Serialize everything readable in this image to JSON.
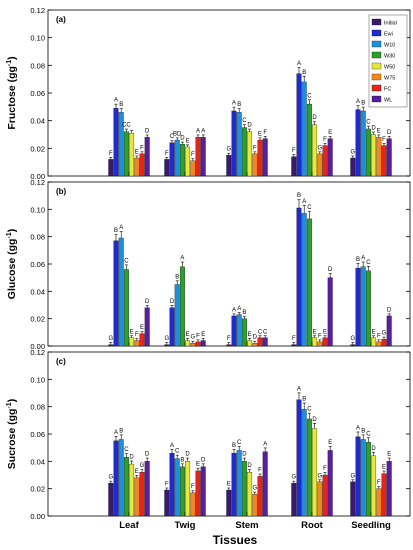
{
  "figure": {
    "xlabel": "Tissues"
  },
  "series_colors": [
    "#3a1a6e",
    "#1f2bd0",
    "#1e8fe0",
    "#2ca02c",
    "#e8e83a",
    "#f28a1b",
    "#e8231c",
    "#5a1ea0"
  ],
  "legend": [
    "Initial",
    "Ewi",
    "W10",
    "W30",
    "W50",
    "W75",
    "FC",
    "WL"
  ],
  "chart_data": [
    {
      "type": "bar",
      "panel": "(a)",
      "ylabel": "Fructose (gg-1)",
      "ylim": [
        0,
        0.12
      ],
      "yticks": [
        "0.00",
        "0.02",
        "0.04",
        "0.06",
        "0.08",
        "0.10",
        "0.12"
      ],
      "categories": [
        "Leaf",
        "Twig",
        "Stem",
        "Root",
        "Seedling"
      ],
      "series": [
        {
          "name": "Initial",
          "values": [
            0.012,
            0.012,
            0.015,
            0.014,
            0.013
          ]
        },
        {
          "name": "Ewi",
          "values": [
            0.049,
            0.024,
            0.047,
            0.074,
            0.048
          ]
        },
        {
          "name": "W10",
          "values": [
            0.046,
            0.026,
            0.046,
            0.068,
            0.047
          ]
        },
        {
          "name": "W30",
          "values": [
            0.032,
            0.023,
            0.035,
            0.052,
            0.034
          ]
        },
        {
          "name": "W50",
          "values": [
            0.031,
            0.021,
            0.032,
            0.037,
            0.03
          ]
        },
        {
          "name": "W75",
          "values": [
            0.013,
            0.011,
            0.016,
            0.016,
            0.028
          ]
        },
        {
          "name": "FC",
          "values": [
            0.016,
            0.028,
            0.026,
            0.022,
            0.022
          ]
        },
        {
          "name": "WL",
          "values": [
            0.028,
            0.028,
            0.027,
            0.027,
            0.027
          ]
        }
      ],
      "letters": [
        [
          "F",
          "A",
          "B",
          "CC",
          "",
          "E",
          "F",
          "D"
        ],
        [
          "F",
          "C",
          "BD",
          "D",
          "E",
          "F",
          "A",
          "A"
        ],
        [
          "G",
          "A",
          "B",
          "C",
          "D",
          "F",
          "E",
          "F"
        ],
        [
          "F",
          "A",
          "B",
          "C",
          "D",
          "G",
          "F",
          "E"
        ],
        [
          "G",
          "A",
          "B",
          "C",
          "D",
          "E",
          "F",
          "D"
        ]
      ]
    },
    {
      "type": "bar",
      "panel": "(b)",
      "ylabel": "Glucose (gg-1)",
      "ylim": [
        0,
        0.12
      ],
      "yticks": [
        "0.00",
        "0.02",
        "0.04",
        "0.06",
        "0.08",
        "0.10",
        "0.12"
      ],
      "categories": [
        "Leaf",
        "Twig",
        "Stem",
        "Root",
        "Seedling"
      ],
      "series": [
        {
          "name": "Initial",
          "values": [
            0.001,
            0.001,
            0.001,
            0.001,
            0.001
          ]
        },
        {
          "name": "Ewi",
          "values": [
            0.077,
            0.028,
            0.022,
            0.101,
            0.057
          ]
        },
        {
          "name": "W10",
          "values": [
            0.079,
            0.045,
            0.023,
            0.097,
            0.058
          ]
        },
        {
          "name": "W30",
          "values": [
            0.056,
            0.058,
            0.02,
            0.093,
            0.055
          ]
        },
        {
          "name": "W50",
          "values": [
            0.006,
            0.004,
            0.004,
            0.006,
            0.006
          ]
        },
        {
          "name": "W75",
          "values": [
            0.004,
            0.002,
            0.002,
            0.003,
            0.003
          ]
        },
        {
          "name": "FC",
          "values": [
            0.009,
            0.003,
            0.006,
            0.006,
            0.005
          ]
        },
        {
          "name": "WL",
          "values": [
            0.028,
            0.004,
            0.006,
            0.05,
            0.022
          ]
        }
      ],
      "letters": [
        [
          "G",
          "B",
          "A",
          "C",
          "E",
          "F",
          "E",
          "D"
        ],
        [
          "G",
          "D",
          "B",
          "A",
          "E",
          "G",
          "F",
          "E"
        ],
        [
          "F",
          "A",
          "A",
          "B",
          "E",
          "D",
          "C",
          "C"
        ],
        [
          "F",
          "B",
          "A",
          "C",
          "E",
          "F",
          "E",
          "D"
        ],
        [
          "G",
          "B",
          "A",
          "C",
          "E",
          "F",
          "G",
          "D"
        ]
      ]
    },
    {
      "type": "bar",
      "panel": "(c)",
      "ylabel": "Sucrose (gg-1)",
      "ylim": [
        0,
        0.12
      ],
      "yticks": [
        "0.00",
        "0.02",
        "0.04",
        "0.06",
        "0.08",
        "0.10",
        "0.12"
      ],
      "categories": [
        "Leaf",
        "Twig",
        "Stem",
        "Root",
        "Seedling"
      ],
      "series": [
        {
          "name": "Initial",
          "values": [
            0.024,
            0.019,
            0.019,
            0.024,
            0.025
          ]
        },
        {
          "name": "Ewi",
          "values": [
            0.055,
            0.046,
            0.046,
            0.085,
            0.058
          ]
        },
        {
          "name": "W10",
          "values": [
            0.056,
            0.042,
            0.048,
            0.078,
            0.056
          ]
        },
        {
          "name": "W30",
          "values": [
            0.043,
            0.036,
            0.04,
            0.071,
            0.054
          ]
        },
        {
          "name": "W50",
          "values": [
            0.038,
            0.04,
            0.032,
            0.064,
            0.044
          ]
        },
        {
          "name": "W75",
          "values": [
            0.028,
            0.017,
            0.016,
            0.025,
            0.02
          ]
        },
        {
          "name": "FC",
          "values": [
            0.032,
            0.033,
            0.029,
            0.03,
            0.031
          ]
        },
        {
          "name": "WL",
          "values": [
            0.04,
            0.036,
            0.047,
            0.048,
            0.04
          ]
        }
      ],
      "letters": [
        [
          "G",
          "A",
          "B",
          "C",
          "D",
          "E",
          "G",
          "D"
        ],
        [
          "F",
          "A",
          "C",
          "B",
          "D",
          "F",
          "E",
          "D"
        ],
        [
          "E",
          "B",
          "C",
          "D",
          "D",
          "G",
          "F",
          "A"
        ],
        [
          "G",
          "A",
          "B",
          "C",
          "D",
          "G",
          "F",
          "E"
        ],
        [
          "G",
          "A",
          "B",
          "C",
          "D",
          "F",
          "E",
          "E"
        ]
      ]
    }
  ]
}
